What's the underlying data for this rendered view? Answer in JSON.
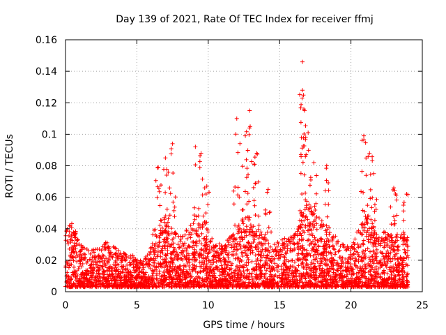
{
  "chart_data": {
    "type": "scatter",
    "title": "Day 139 of 2021, Rate Of TEC Index for receiver ffmj",
    "xlabel": "GPS time / hours",
    "ylabel": "ROTI / TECUs",
    "xlim": [
      0,
      25
    ],
    "ylim": [
      0,
      0.16
    ],
    "x_ticks": [
      "0",
      "5",
      "10",
      "15",
      "20",
      "25"
    ],
    "y_ticks": [
      "0",
      "0.02",
      "0.04",
      "0.06",
      "0.08",
      "0.1",
      "0.12",
      "0.14",
      "0.16"
    ],
    "grid": true,
    "marker": "+",
    "color": "#ff0000",
    "series": [
      {
        "x": [
          0.0,
          24.0
        ],
        "y": [
          0.0,
          0.0
        ],
        "envelope": {
          "description_hours": [
            0,
            0.5,
            1,
            1.5,
            2,
            2.5,
            3,
            3.5,
            4,
            4.5,
            5,
            5.5,
            6,
            6.5,
            7,
            7.5,
            8,
            8.5,
            9,
            9.5,
            10,
            10.5,
            11,
            11.5,
            12,
            12.5,
            13,
            13.5,
            14,
            14.5,
            15,
            15.5,
            16,
            16.5,
            17,
            17.5,
            18,
            18.5,
            19,
            19.5,
            20,
            20.5,
            21,
            21.5,
            22,
            22.5,
            23,
            23.5,
            24
          ],
          "typical_max": [
            0.04,
            0.045,
            0.03,
            0.028,
            0.027,
            0.03,
            0.032,
            0.028,
            0.025,
            0.024,
            0.022,
            0.02,
            0.035,
            0.045,
            0.05,
            0.04,
            0.035,
            0.04,
            0.045,
            0.05,
            0.04,
            0.032,
            0.03,
            0.035,
            0.04,
            0.05,
            0.045,
            0.04,
            0.035,
            0.03,
            0.032,
            0.035,
            0.04,
            0.05,
            0.055,
            0.05,
            0.045,
            0.04,
            0.035,
            0.03,
            0.028,
            0.04,
            0.05,
            0.045,
            0.035,
            0.04,
            0.035,
            0.04,
            0.035
          ]
        },
        "peaks": [
          {
            "x": 6.5,
            "y": 0.079
          },
          {
            "x": 7.0,
            "y": 0.085
          },
          {
            "x": 7.5,
            "y": 0.094
          },
          {
            "x": 9.1,
            "y": 0.092
          },
          {
            "x": 9.5,
            "y": 0.088
          },
          {
            "x": 9.9,
            "y": 0.067
          },
          {
            "x": 12.0,
            "y": 0.11
          },
          {
            "x": 12.6,
            "y": 0.099
          },
          {
            "x": 12.9,
            "y": 0.115
          },
          {
            "x": 13.4,
            "y": 0.088
          },
          {
            "x": 14.2,
            "y": 0.065
          },
          {
            "x": 16.6,
            "y": 0.146
          },
          {
            "x": 16.6,
            "y": 0.128
          },
          {
            "x": 16.7,
            "y": 0.116
          },
          {
            "x": 17.0,
            "y": 0.101
          },
          {
            "x": 17.4,
            "y": 0.082
          },
          {
            "x": 18.3,
            "y": 0.08
          },
          {
            "x": 20.9,
            "y": 0.099
          },
          {
            "x": 21.3,
            "y": 0.088
          },
          {
            "x": 21.6,
            "y": 0.075
          },
          {
            "x": 23.0,
            "y": 0.066
          },
          {
            "x": 23.9,
            "y": 0.062
          }
        ]
      }
    ]
  }
}
